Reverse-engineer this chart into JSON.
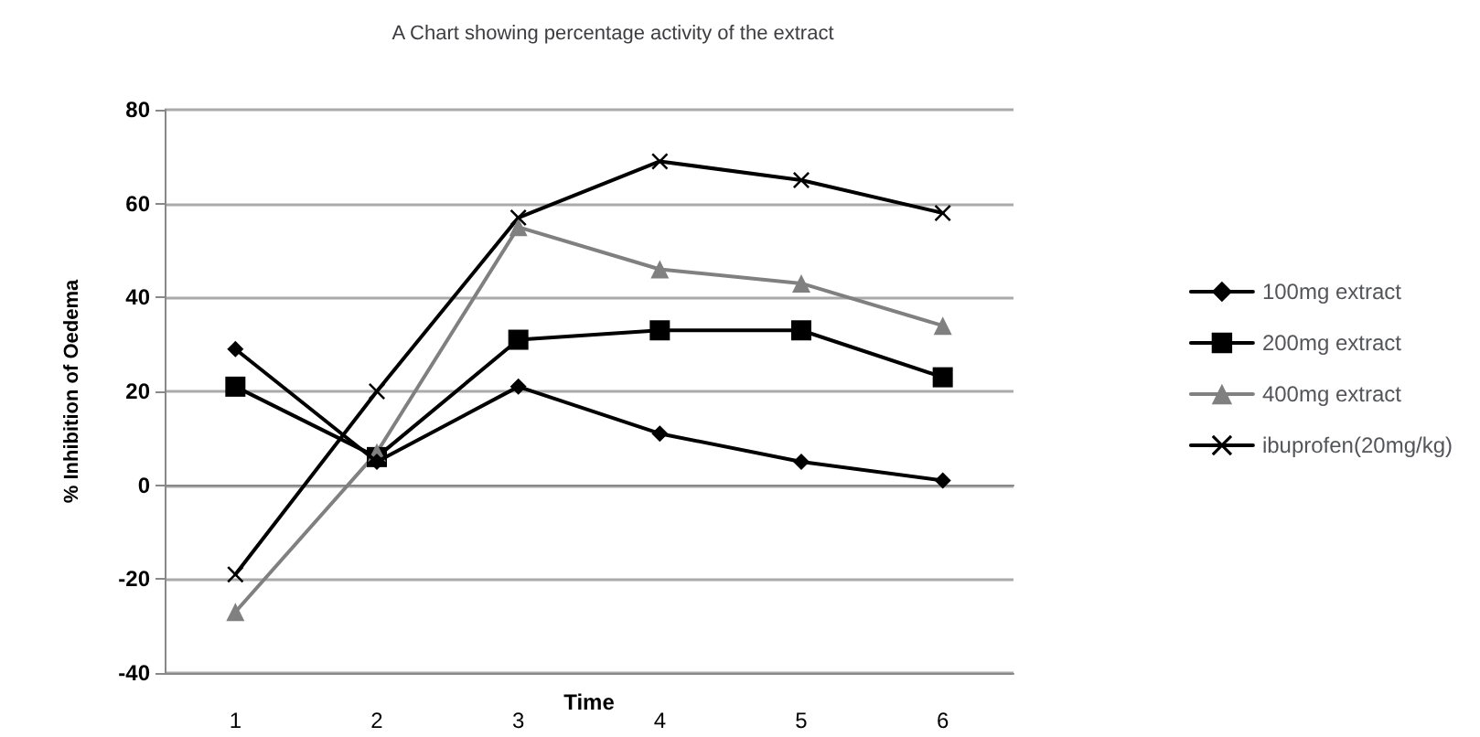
{
  "chart_data": {
    "type": "line",
    "title": "A Chart showing percentage activity of the extract",
    "xlabel": "Time",
    "ylabel": "% Inhibition of Oedema",
    "categories": [
      "1",
      "2",
      "3",
      "4",
      "5",
      "6"
    ],
    "series": [
      {
        "name": "100mg extract",
        "color": "#000000",
        "marker": "diamond",
        "values": [
          29,
          5,
          21,
          11,
          5,
          1
        ]
      },
      {
        "name": "200mg extract",
        "color": "#000000",
        "marker": "square",
        "values": [
          21,
          6,
          31,
          33,
          33,
          23
        ]
      },
      {
        "name": "400mg extract",
        "color": "#808080",
        "marker": "triangle",
        "values": [
          -27,
          7,
          55,
          46,
          43,
          34
        ]
      },
      {
        "name": "ibuprofen(20mg/kg)",
        "color": "#000000",
        "marker": "cross",
        "values": [
          -19,
          20,
          57,
          69,
          65,
          58
        ]
      }
    ],
    "ylim": [
      -40,
      80
    ],
    "yticks": [
      -40,
      -20,
      0,
      20,
      40,
      60,
      80
    ],
    "grid": "y",
    "legend": "right",
    "line_style": "solid"
  }
}
